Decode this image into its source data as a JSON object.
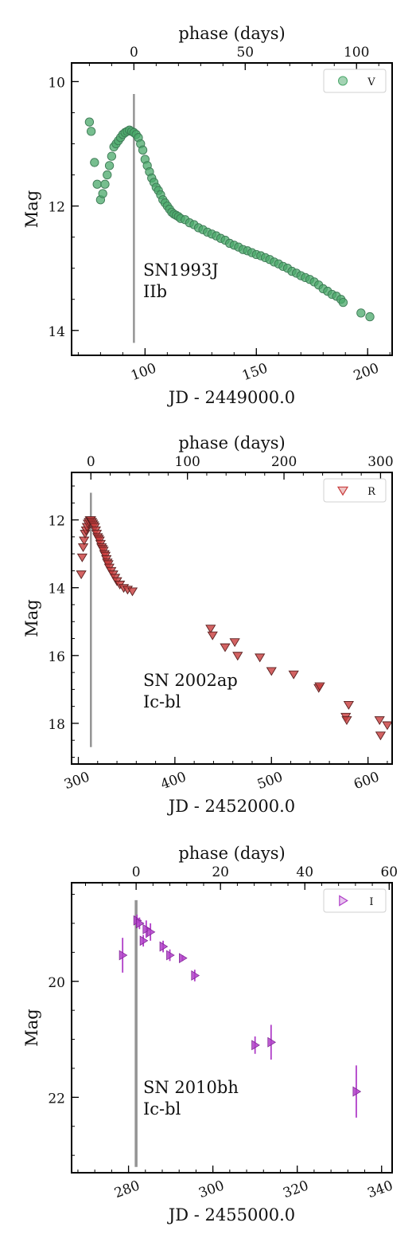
{
  "chart_data": [
    {
      "type": "scatter",
      "xlabel": "JD - 2449000.0",
      "ylabel": "Mag",
      "top_xlabel": "phase (days)",
      "xlim": [
        67,
        211
      ],
      "ylim": [
        14.4,
        9.7
      ],
      "y_inverted": true,
      "xticks": [
        100,
        150,
        200
      ],
      "yticks": [
        10,
        12,
        14
      ],
      "top_ticks": [
        0,
        50,
        100
      ],
      "peak_x": 95,
      "peak_band": [
        10.2,
        14.2
      ],
      "legend": {
        "label": "V",
        "marker": "circle",
        "position": "top-right"
      },
      "annotation": [
        "SN1993J",
        "IIb"
      ],
      "color": "#4aa86a",
      "series": [
        {
          "name": "V",
          "marker": "circle",
          "points": [
            [
              75,
              10.65
            ],
            [
              75.8,
              10.8
            ],
            [
              77.3,
              11.3
            ],
            [
              78.5,
              11.65
            ],
            [
              80,
              11.9
            ],
            [
              81,
              11.8
            ],
            [
              82,
              11.65
            ],
            [
              83,
              11.5
            ],
            [
              84,
              11.35
            ],
            [
              85,
              11.2
            ],
            [
              86,
              11.05
            ],
            [
              87,
              11.0
            ],
            [
              88,
              10.95
            ],
            [
              89,
              10.9
            ],
            [
              90,
              10.85
            ],
            [
              91,
              10.82
            ],
            [
              92,
              10.8
            ],
            [
              93,
              10.78
            ],
            [
              94,
              10.8
            ],
            [
              95,
              10.82
            ],
            [
              96,
              10.85
            ],
            [
              97,
              10.9
            ],
            [
              98,
              11.0
            ],
            [
              99,
              11.1
            ],
            [
              100,
              11.25
            ],
            [
              101,
              11.35
            ],
            [
              102,
              11.45
            ],
            [
              103,
              11.55
            ],
            [
              104,
              11.62
            ],
            [
              105,
              11.7
            ],
            [
              106,
              11.75
            ],
            [
              107,
              11.82
            ],
            [
              108,
              11.9
            ],
            [
              109,
              11.95
            ],
            [
              110,
              12.0
            ],
            [
              111,
              12.05
            ],
            [
              112,
              12.1
            ],
            [
              113,
              12.13
            ],
            [
              114,
              12.15
            ],
            [
              115,
              12.17
            ],
            [
              116,
              12.2
            ],
            [
              118,
              12.22
            ],
            [
              120,
              12.27
            ],
            [
              122,
              12.3
            ],
            [
              124,
              12.35
            ],
            [
              126,
              12.38
            ],
            [
              128,
              12.42
            ],
            [
              130,
              12.45
            ],
            [
              132,
              12.48
            ],
            [
              134,
              12.52
            ],
            [
              136,
              12.55
            ],
            [
              138,
              12.6
            ],
            [
              140,
              12.63
            ],
            [
              142,
              12.66
            ],
            [
              144,
              12.7
            ],
            [
              146,
              12.72
            ],
            [
              148,
              12.75
            ],
            [
              150,
              12.78
            ],
            [
              152,
              12.8
            ],
            [
              154,
              12.83
            ],
            [
              156,
              12.86
            ],
            [
              158,
              12.9
            ],
            [
              160,
              12.93
            ],
            [
              162,
              12.97
            ],
            [
              164,
              13.0
            ],
            [
              166,
              13.05
            ],
            [
              168,
              13.08
            ],
            [
              170,
              13.12
            ],
            [
              172,
              13.15
            ],
            [
              174,
              13.18
            ],
            [
              176,
              13.22
            ],
            [
              178,
              13.27
            ],
            [
              180,
              13.33
            ],
            [
              182,
              13.37
            ],
            [
              184,
              13.42
            ],
            [
              186,
              13.45
            ],
            [
              188,
              13.5
            ],
            [
              189,
              13.55
            ],
            [
              197,
              13.72
            ],
            [
              201,
              13.78
            ]
          ]
        }
      ]
    },
    {
      "type": "scatter",
      "xlabel": "JD - 2452000.0",
      "ylabel": "Mag",
      "top_xlabel": "phase (days)",
      "xlim": [
        293,
        625
      ],
      "ylim": [
        19.2,
        10.6
      ],
      "y_inverted": true,
      "xticks": [
        300,
        400,
        500,
        600
      ],
      "yticks": [
        12,
        14,
        16,
        18
      ],
      "top_ticks": [
        0,
        100,
        200,
        300
      ],
      "peak_x": 313,
      "peak_band": [
        11.2,
        18.7
      ],
      "legend": {
        "label": "R",
        "marker": "triangle-down",
        "position": "top-right"
      },
      "annotation": [
        "SN 2002ap",
        "Ic-bl"
      ],
      "color": "#c83c3c",
      "series": [
        {
          "name": "R",
          "marker": "triangle-down",
          "points": [
            [
              303,
              13.6
            ],
            [
              304,
              13.1
            ],
            [
              305,
              12.8
            ],
            [
              306,
              12.6
            ],
            [
              307,
              12.4
            ],
            [
              308,
              12.3
            ],
            [
              309,
              12.2
            ],
            [
              310,
              12.1
            ],
            [
              311,
              12.05
            ],
            [
              312,
              12.0
            ],
            [
              313,
              12.0
            ],
            [
              314,
              12.05
            ],
            [
              315,
              12.1
            ],
            [
              316,
              12.15
            ],
            [
              317,
              12.2
            ],
            [
              318,
              12.3
            ],
            [
              319,
              12.4
            ],
            [
              320,
              12.5
            ],
            [
              321,
              12.55
            ],
            [
              322,
              12.6
            ],
            [
              323,
              12.7
            ],
            [
              324,
              12.8
            ],
            [
              325,
              12.85
            ],
            [
              326,
              12.9
            ],
            [
              327,
              13.0
            ],
            [
              328,
              13.05
            ],
            [
              329,
              13.15
            ],
            [
              330,
              13.25
            ],
            [
              331,
              13.3
            ],
            [
              332,
              13.4
            ],
            [
              334,
              13.5
            ],
            [
              336,
              13.6
            ],
            [
              338,
              13.7
            ],
            [
              340,
              13.8
            ],
            [
              343,
              13.9
            ],
            [
              347,
              14.0
            ],
            [
              351,
              14.05
            ],
            [
              356,
              14.1
            ],
            [
              437,
              15.2
            ],
            [
              439,
              15.4
            ],
            [
              452,
              15.75
            ],
            [
              462,
              15.6
            ],
            [
              465,
              16.0
            ],
            [
              488,
              16.05
            ],
            [
              500,
              16.45
            ],
            [
              523,
              16.55
            ],
            [
              549,
              16.95
            ],
            [
              550,
              16.9
            ],
            [
              577,
              17.8
            ],
            [
              578,
              17.9
            ],
            [
              580,
              17.45
            ],
            [
              612,
              17.9
            ],
            [
              613,
              18.35
            ],
            [
              620,
              18.05
            ]
          ]
        }
      ]
    },
    {
      "type": "scatter",
      "xlabel": "JD - 2455000.0",
      "ylabel": "Mag",
      "top_xlabel": "phase (days)",
      "xlim": [
        266.5,
        342.5
      ],
      "ylim": [
        23.3,
        18.3
      ],
      "y_inverted": true,
      "xticks": [
        280,
        300,
        320,
        340
      ],
      "yticks": [
        20,
        22
      ],
      "top_ticks": [
        0,
        20,
        40,
        60
      ],
      "peak_x": 281.8,
      "peak_band": [
        18.6,
        23.2
      ],
      "legend": {
        "label": "I",
        "marker": "triangle-right",
        "position": "top-right"
      },
      "annotation": [
        "SN 2010bh",
        "Ic-bl"
      ],
      "color": "#b03ec8",
      "series": [
        {
          "name": "I",
          "marker": "triangle-right",
          "points": [
            [
              278.6,
              19.55,
              0.3
            ],
            [
              282.0,
              18.95,
              0.1
            ],
            [
              282.6,
              19.0,
              0.1
            ],
            [
              283.5,
              19.3,
              0.1
            ],
            [
              284.2,
              19.1,
              0.15
            ],
            [
              285.2,
              19.15,
              0.15
            ],
            [
              288.2,
              19.4,
              0.1
            ],
            [
              289.8,
              19.55,
              0.1
            ],
            [
              292.8,
              19.6,
              0.05
            ],
            [
              295.7,
              19.9,
              0.1
            ],
            [
              310.0,
              21.1,
              0.15
            ],
            [
              313.8,
              21.05,
              0.3
            ],
            [
              334.0,
              21.9,
              0.45
            ]
          ]
        }
      ]
    }
  ]
}
